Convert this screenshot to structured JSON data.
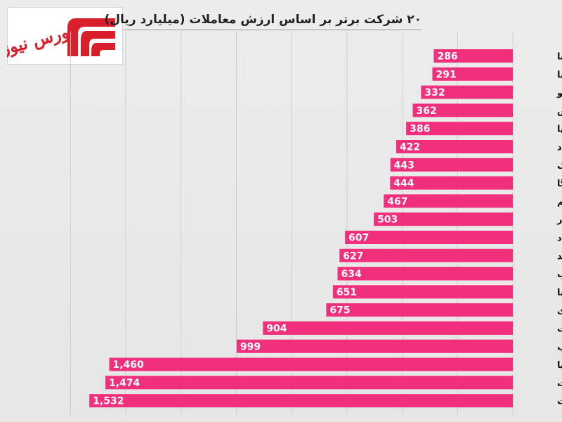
{
  "logo": {
    "text": "بورس نیوز",
    "accent_color": "#d91f2a"
  },
  "chart_data": {
    "type": "bar",
    "orientation": "horizontal",
    "direction": "rtl",
    "title": "۲۰ شرکت برتر بر اساس ارزش معاملات (میلیارد ریال)",
    "categories": [
      "رمپنا",
      "وسینا",
      "خودرو",
      "خپارس",
      "چکاپا",
      "فولاد",
      "شاراک",
      "سمگا",
      "امین یکم",
      "وبصادر",
      "اعتماد",
      "دعبید",
      "های وب",
      "شپنا",
      "دی",
      "وپست",
      "ذوب",
      "خساپا",
      "وبملت",
      "وتجارت"
    ],
    "values": [
      286,
      291,
      332,
      362,
      386,
      422,
      443,
      444,
      467,
      503,
      607,
      627,
      634,
      651,
      675,
      904,
      999,
      1460,
      1474,
      1532
    ],
    "value_labels": [
      "286",
      "291",
      "332",
      "362",
      "386",
      "422",
      "443",
      "444",
      "467",
      "503",
      "607",
      "627",
      "634",
      "651",
      "675",
      "904",
      "999",
      "1,460",
      "1,474",
      "1,532"
    ],
    "xlim": [
      0,
      1600
    ],
    "grid": true,
    "bar_color": "#f22f7c",
    "legend": "none"
  }
}
